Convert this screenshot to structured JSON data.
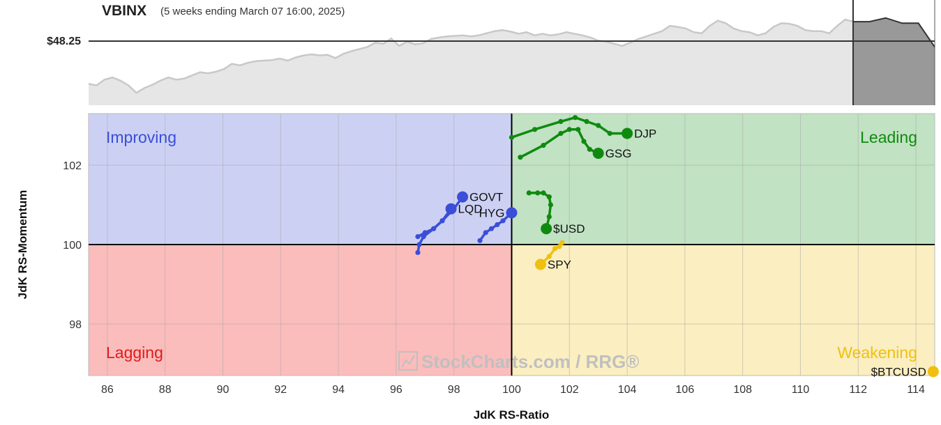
{
  "header": {
    "symbol": "VBINX",
    "subtitle": "(5 weeks ending March 07 16:00, 2025)",
    "price_label": "$48.25"
  },
  "colors": {
    "improving": "#ccd1f4",
    "leading": "#c1e2c3",
    "lagging": "#fbbcbc",
    "weakening": "#fbeec0",
    "blue": "#3a4ed8",
    "green": "#0f8a0f",
    "yellow": "#f0c010",
    "red": "#e11b1b",
    "price_fill": "#e6e6e6",
    "price_line": "#c8c8c8",
    "projection_fill": "#999999"
  },
  "watermark": "StockCharts.com / RRG®",
  "chart_data": {
    "type": "scatter",
    "subtype": "relative-rotation-graph",
    "xlabel": "JdK RS-Ratio",
    "ylabel": "JdK RS-Momentum",
    "xlim": [
      85.35,
      114.65
    ],
    "ylim": [
      96.7,
      103.3
    ],
    "xticks": [
      86,
      88,
      90,
      92,
      94,
      96,
      98,
      100,
      102,
      104,
      106,
      108,
      110,
      112,
      114
    ],
    "yticks": [
      98,
      100,
      102
    ],
    "center": {
      "x": 100,
      "y": 100
    },
    "grid": true,
    "quadrants": [
      {
        "name": "Improving",
        "position": "top-left",
        "color": "#3a4ed8"
      },
      {
        "name": "Leading",
        "position": "top-right",
        "color": "#0f8a0f"
      },
      {
        "name": "Lagging",
        "position": "bottom-left",
        "color": "#e11b1b"
      },
      {
        "name": "Weakening",
        "position": "bottom-right",
        "color": "#f0c010"
      }
    ],
    "series": [
      {
        "name": "DJP",
        "color": "#0f8a0f",
        "label_side": "right",
        "points": [
          [
            100.0,
            102.7
          ],
          [
            100.8,
            102.9
          ],
          [
            101.7,
            103.1
          ],
          [
            102.2,
            103.2
          ],
          [
            102.6,
            103.1
          ],
          [
            103.0,
            103.0
          ],
          [
            103.4,
            102.8
          ],
          [
            104.0,
            102.8
          ]
        ]
      },
      {
        "name": "GSG",
        "color": "#0f8a0f",
        "label_side": "right",
        "points": [
          [
            100.3,
            102.2
          ],
          [
            101.1,
            102.5
          ],
          [
            101.7,
            102.8
          ],
          [
            102.0,
            102.9
          ],
          [
            102.3,
            102.9
          ],
          [
            102.5,
            102.6
          ],
          [
            102.7,
            102.4
          ],
          [
            103.0,
            102.3
          ]
        ]
      },
      {
        "name": "$USD",
        "color": "#0f8a0f",
        "label_side": "right",
        "points": [
          [
            100.6,
            101.3
          ],
          [
            100.9,
            101.3
          ],
          [
            101.1,
            101.3
          ],
          [
            101.3,
            101.2
          ],
          [
            101.35,
            101.0
          ],
          [
            101.3,
            100.7
          ],
          [
            101.2,
            100.4
          ]
        ]
      },
      {
        "name": "GOVT",
        "color": "#3a4ed8",
        "label_side": "right",
        "points": [
          [
            96.75,
            100.2
          ],
          [
            97.0,
            100.3
          ],
          [
            97.3,
            100.4
          ],
          [
            97.6,
            100.6
          ],
          [
            98.0,
            100.9
          ],
          [
            98.3,
            101.2
          ]
        ]
      },
      {
        "name": "LQD",
        "color": "#3a4ed8",
        "label_side": "right",
        "points": [
          [
            96.75,
            99.8
          ],
          [
            96.8,
            100.0
          ],
          [
            96.95,
            100.2
          ],
          [
            97.3,
            100.4
          ],
          [
            97.6,
            100.6
          ],
          [
            97.9,
            100.9
          ]
        ]
      },
      {
        "name": "HYG",
        "color": "#3a4ed8",
        "label_side": "left",
        "points": [
          [
            98.9,
            100.1
          ],
          [
            99.1,
            100.3
          ],
          [
            99.3,
            100.4
          ],
          [
            99.5,
            100.5
          ],
          [
            99.7,
            100.6
          ],
          [
            100.0,
            100.8
          ]
        ]
      },
      {
        "name": "SPY",
        "color": "#f0c010",
        "label_side": "right",
        "points": [
          [
            101.75,
            100.05
          ],
          [
            101.65,
            99.95
          ],
          [
            101.5,
            99.9
          ],
          [
            101.3,
            99.7
          ],
          [
            101.0,
            99.5
          ]
        ]
      },
      {
        "name": "$BTCUSD",
        "color": "#f0c010",
        "label_side": "left",
        "points": [
          [
            114.6,
            96.8
          ]
        ]
      }
    ],
    "price_series": {
      "name": "VBINX",
      "reference_price": 48.25,
      "history": [
        0.3,
        0.27,
        0.38,
        0.42,
        0.36,
        0.27,
        0.13,
        0.22,
        0.28,
        0.36,
        0.42,
        0.38,
        0.4,
        0.46,
        0.52,
        0.5,
        0.53,
        0.58,
        0.68,
        0.65,
        0.7,
        0.73,
        0.74,
        0.75,
        0.78,
        0.74,
        0.8,
        0.84,
        0.86,
        0.84,
        0.85,
        0.79,
        0.87,
        0.92,
        0.96,
        1.0,
        1.08,
        1.06,
        1.16,
        1.02,
        1.1,
        1.05,
        1.07,
        1.15,
        1.18,
        1.2,
        1.21,
        1.22,
        1.2,
        1.22,
        1.26,
        1.3,
        1.32,
        1.29,
        1.25,
        1.28,
        1.22,
        1.25,
        1.22,
        1.24,
        1.28,
        1.25,
        1.22,
        1.18,
        1.12,
        1.1,
        1.06,
        1.02,
        1.08,
        1.15,
        1.2,
        1.25,
        1.3,
        1.4,
        1.38,
        1.35,
        1.28,
        1.26,
        1.4,
        1.5,
        1.45,
        1.35,
        1.3,
        1.28,
        1.22,
        1.26,
        1.38,
        1.45,
        1.44,
        1.4,
        1.32,
        1.3,
        1.3,
        1.26,
        1.4,
        1.52,
        1.48
      ],
      "projection": [
        1.48,
        1.48,
        1.55,
        1.45,
        1.45,
        1.0
      ]
    }
  }
}
